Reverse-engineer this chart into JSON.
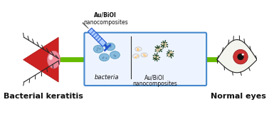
{
  "title": "",
  "background_color": "#ffffff",
  "left_label": "Bacterial keratitis",
  "right_label": "Normal eyes",
  "syringe_label_line1": "Au/BiOI",
  "syringe_label_line2": "nanocomposites",
  "box_bacteria_label": "bacteria",
  "box_nano_label_line1": "Au/BiOI",
  "box_nano_label_line2": "nanocomposites",
  "arrow_color": "#66bb00",
  "box_border_color": "#4488cc",
  "box_bg_color": "#eef4ff",
  "syringe_color": "#2255cc",
  "bacteria_color": "#88bbdd",
  "nano_color_dark": "#334433",
  "infected_eye_red": "#cc2222",
  "infected_eye_pink": "#ee8899",
  "normal_eye_white": "#f5f5f0",
  "normal_eye_red": "#cc3333",
  "eyelash_color": "#222222",
  "label_fontsize": 8,
  "small_fontsize": 5.5,
  "fig_width": 3.78,
  "fig_height": 1.64,
  "dpi": 100
}
